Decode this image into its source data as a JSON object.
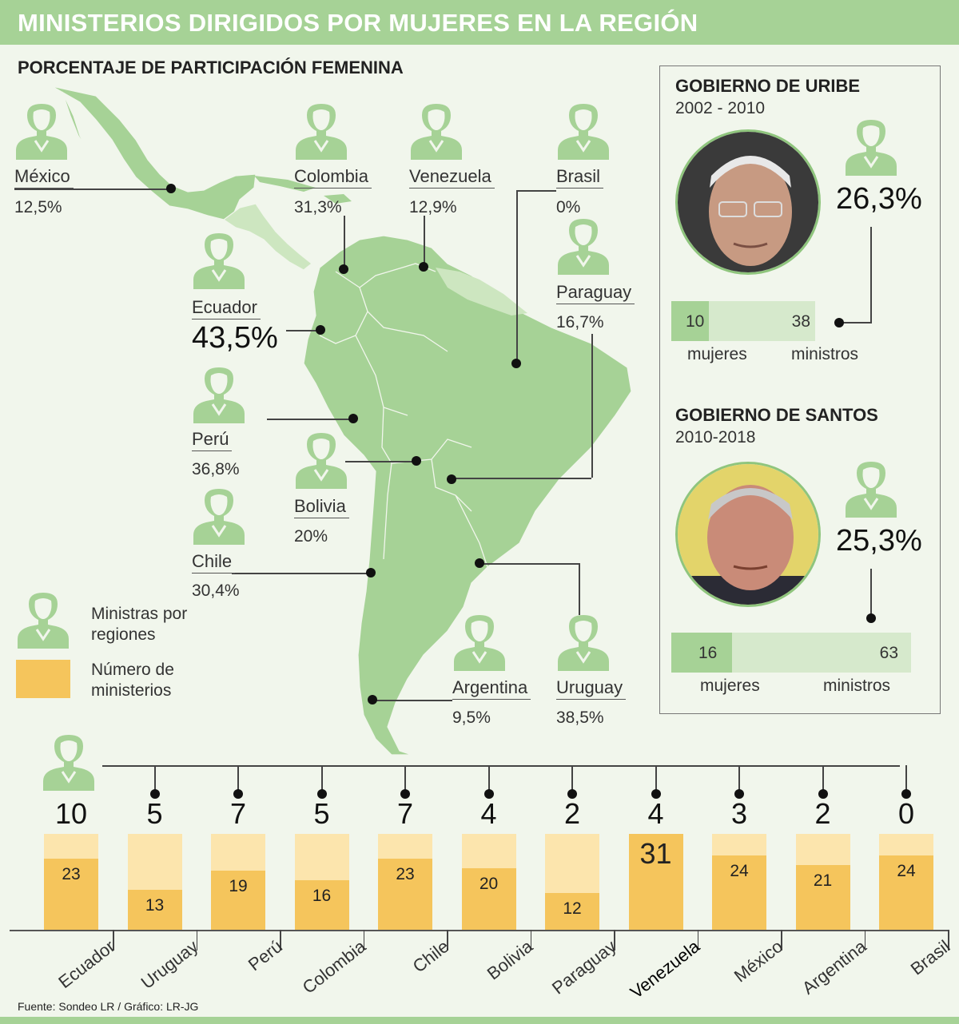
{
  "title": "MINISTERIOS DIRIGIDOS POR MUJERES EN LA REGIÓN",
  "subtitle": "PORCENTAJE DE PARTICIPACIÓN FEMENINA",
  "countries": [
    {
      "name": "México",
      "pct": "12,5%"
    },
    {
      "name": "Colombia",
      "pct": "31,3%"
    },
    {
      "name": "Venezuela",
      "pct": "12,9%"
    },
    {
      "name": "Brasil",
      "pct": "0%"
    },
    {
      "name": "Paraguay",
      "pct": "16,7%"
    },
    {
      "name": "Ecuador",
      "pct": "43,5%"
    },
    {
      "name": "Perú",
      "pct": "36,8%"
    },
    {
      "name": "Bolivia",
      "pct": "20%"
    },
    {
      "name": "Chile",
      "pct": "30,4%"
    },
    {
      "name": "Argentina",
      "pct": "9,5%"
    },
    {
      "name": "Uruguay",
      "pct": "38,5%"
    }
  ],
  "uribe": {
    "title": "GOBIERNO DE URIBE",
    "years": "2002 - 2010",
    "pct": "26,3%",
    "women": "10",
    "total": "38",
    "women_label": "mujeres",
    "total_label": "ministros",
    "women_value": 10,
    "total_value": 38
  },
  "santos": {
    "title": "GOBIERNO DE SANTOS",
    "years": "2010-2018",
    "pct": "25,3%",
    "women": "16",
    "total": "63",
    "women_label": "mujeres",
    "total_label": "ministros",
    "women_value": 16,
    "total_value": 63
  },
  "legend": {
    "women": "Ministras por regiones",
    "ministries": "Número de ministerios"
  },
  "source": "Fuente: Sondeo LR / Gráfico: LR-JG",
  "colors": {
    "green": "#a6d296",
    "light_green": "#d6e9cc",
    "yellow": "#f5c55c",
    "light_yellow": "#fce5ad",
    "background": "#f1f6ec"
  },
  "chart_data": {
    "type": "bar",
    "categories": [
      "Ecuador",
      "Uruguay",
      "Perú",
      "Colombia",
      "Chile",
      "Bolivia",
      "Paraguay",
      "Venezuela",
      "México",
      "Argentina",
      "Brasil"
    ],
    "series": [
      {
        "name": "Ministras por regiones",
        "values": [
          10,
          5,
          7,
          5,
          7,
          4,
          2,
          4,
          3,
          2,
          0
        ]
      },
      {
        "name": "Número de ministerios",
        "values": [
          23,
          13,
          19,
          16,
          23,
          20,
          12,
          31,
          24,
          21,
          24
        ]
      }
    ],
    "ylim": [
      0,
      31
    ]
  }
}
